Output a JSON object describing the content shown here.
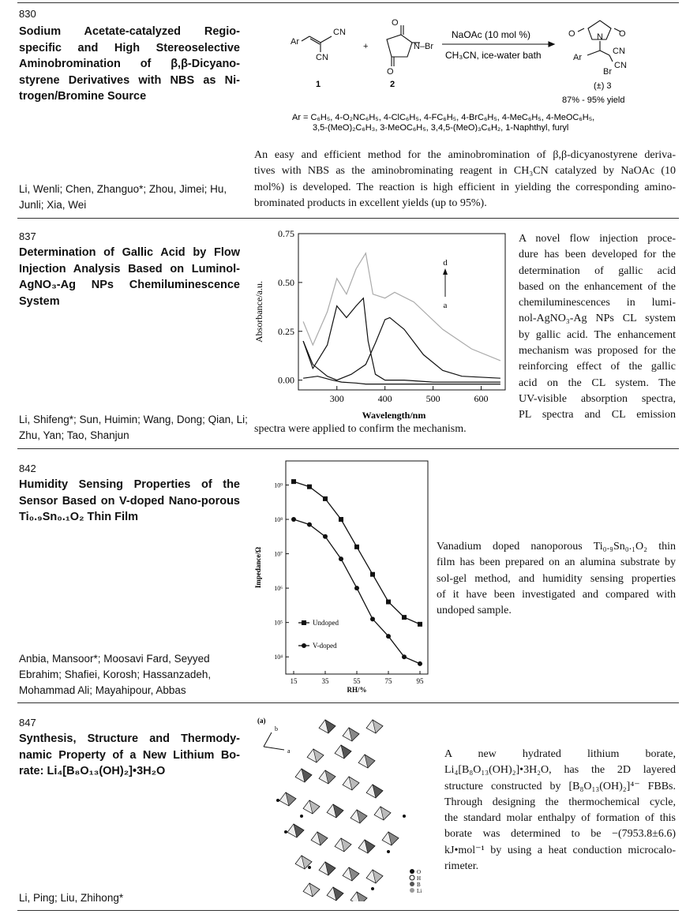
{
  "entries": [
    {
      "number": "830",
      "title": "Sodium Acetate-catalyzed Regio-specific and High Stereoselective Aminobromination of β,β-Dicyano-styrene Derivatives with NBS as Ni-trogen/Bromine Source",
      "authors": "Li, Wenli; Chen, Zhanguo*; Zhou, Jimei; Hu, Junli; Xia, Wei",
      "scheme": {
        "reagent_top": "NaOAc (10 mol %)",
        "reagent_bottom": "CH₃CN, ice-water bath",
        "compound1": "1",
        "compound2": "2",
        "product": "(±) 3",
        "yield": "87% - 95% yield",
        "ar_line1": "Ar = C₆H₅, 4-O₂NC₆H₅, 4-ClC₆H₅, 4-FC₆H₅, 4-BrC₆H₅, 4-MeC₆H₅, 4-MeOC₆H₅,",
        "ar_line2": "3,5-(MeO)₂C₆H₃, 3-MeOC₆H₅, 3,4,5-(MeO)₃C₆H₂, 1-Naphthyl, furyl"
      },
      "abstract_lines": [
        "An easy and efficient method for the aminobromination of β,β-dicyanostyrene deriva-",
        "tives with NBS as the aminobrominating reagent in CH₃CN catalyzed by NaOAc (10",
        "mol%) is developed. The reaction is high efficient in yielding the corresponding amino-",
        "brominated products in excellent yields (up to 95%)."
      ]
    },
    {
      "number": "837",
      "title": "Determination of Gallic Acid by Flow Injection Analysis Based on Luminol-AgNO₃-Ag NPs Chemiluminescence System",
      "authors": "Li, Shifeng*; Sun, Huimin; Wang, Dong; Qian, Li; Zhu, Yan; Tao, Shanjun",
      "abstract_lines": [
        "A novel flow injection proce-",
        "dure has been developed for the",
        "determination of gallic acid",
        "based on the enhancement of the",
        "chemiluminescences in lumi-",
        "nol-AgNO₃-Ag NPs CL system",
        "by gallic acid. The enhancement",
        "mechanism was proposed for the",
        "reinforcing effect of the gallic",
        "acid on the CL system. The",
        "UV-visible absorption spectra,",
        "PL spectra and CL emission"
      ],
      "abstract_tail": "spectra were applied to confirm the mechanism."
    },
    {
      "number": "842",
      "title": "Humidity Sensing Properties of the Sensor Based on V-doped Nano-porous Ti₀.₉Sn₀.₁O₂ Thin Film",
      "authors": "Anbia, Mansoor*; Moosavi Fard, Seyyed Ebrahim; Shafiei, Korosh; Hassanzadeh, Mohammad Ali; Mayahipour, Abbas",
      "abstract_lines": [
        "Vanadium doped nanoporous Ti₀.₉Sn₀.₁O₂ thin",
        "film has been prepared on an alumina substrate by",
        "sol-gel method, and humidity sensing properties",
        "of it have been investigated and compared with",
        "undoped sample."
      ]
    },
    {
      "number": "847",
      "title": "Synthesis, Structure and Thermody-namic Property of a New Lithium Bo-rate: Li₄[B₈O₁₃(OH)₂]•3H₂O",
      "authors": "Li, Ping; Liu, Zhihong*",
      "structure_legend": [
        "O",
        "H",
        "B",
        "Li"
      ],
      "structure_label": "(a)",
      "axis_b": "b",
      "axis_a": "a",
      "abstract_lines": [
        "A new hydrated lithium borate,",
        "Li₄[B₈O₁₃(OH)₂]•3H₂O, has the 2D layered",
        "structure constructed by [B₈O₁₃(OH)₂]⁴⁻ FBBs.",
        "Through designing the thermochemical cycle,",
        "the standard molar enthalpy of formation of this",
        "borate was determined to be −(7953.8±6.6)",
        "kJ•mol⁻¹ by using a heat conduction microcalo-",
        "rimeter."
      ]
    }
  ],
  "chart_data": [
    {
      "type": "line",
      "xlabel": "Wavelength/nm",
      "ylabel": "Absorbance/a.u.",
      "xlim": [
        220,
        650
      ],
      "ylim": [
        -0.05,
        0.75
      ],
      "xticks": [
        "300",
        "400",
        "500",
        "600"
      ],
      "yticks": [
        "0.00",
        "0.25",
        "0.50",
        "0.75"
      ],
      "annotation_top": "d",
      "annotation_bottom": "a",
      "series": [
        {
          "x": [
            230,
            260,
            290,
            310,
            340,
            360,
            380,
            400,
            440,
            500,
            560,
            640
          ],
          "y": [
            0.01,
            0.02,
            0.0,
            -0.01,
            -0.015,
            -0.02,
            -0.02,
            -0.02,
            -0.02,
            -0.02,
            -0.02,
            -0.02
          ]
        },
        {
          "x": [
            230,
            250,
            280,
            300,
            320,
            340,
            355,
            365,
            380,
            400,
            440,
            500,
            560,
            640
          ],
          "y": [
            0.2,
            0.06,
            0.18,
            0.38,
            0.32,
            0.38,
            0.42,
            0.2,
            0.03,
            0.0,
            0.0,
            -0.01,
            -0.01,
            -0.01
          ]
        },
        {
          "x": [
            230,
            250,
            280,
            300,
            330,
            360,
            380,
            400,
            410,
            440,
            480,
            520,
            560,
            640
          ],
          "y": [
            0.2,
            0.08,
            0.02,
            0.0,
            0.03,
            0.08,
            0.19,
            0.31,
            0.32,
            0.26,
            0.13,
            0.05,
            0.02,
            0.01
          ]
        },
        {
          "x": [
            230,
            250,
            280,
            300,
            320,
            340,
            360,
            375,
            400,
            420,
            460,
            520,
            580,
            640
          ],
          "y": [
            0.3,
            0.18,
            0.35,
            0.52,
            0.44,
            0.57,
            0.65,
            0.44,
            0.42,
            0.45,
            0.4,
            0.26,
            0.16,
            0.1
          ]
        }
      ]
    },
    {
      "type": "line",
      "xlabel": "RH/%",
      "ylabel": "Impedance/Ω",
      "xlim": [
        10,
        100
      ],
      "ylim": [
        3.5,
        9.7
      ],
      "log_y": true,
      "xticks": [
        "15",
        "35",
        "55",
        "75",
        "95"
      ],
      "yticks": [
        "10⁴",
        "10⁵",
        "10⁶",
        "10⁷",
        "10⁸",
        "10⁹"
      ],
      "series": [
        {
          "name": "Undoped",
          "x": [
            15,
            25,
            35,
            45,
            55,
            65,
            75,
            85,
            95
          ],
          "y": [
            9.1,
            8.95,
            8.6,
            8.0,
            7.2,
            6.4,
            5.6,
            5.15,
            4.95
          ]
        },
        {
          "name": "V-doped",
          "x": [
            15,
            25,
            35,
            45,
            55,
            65,
            75,
            85,
            95
          ],
          "y": [
            8.0,
            7.85,
            7.5,
            6.85,
            6.0,
            5.1,
            4.6,
            4.0,
            3.8
          ]
        }
      ]
    }
  ]
}
